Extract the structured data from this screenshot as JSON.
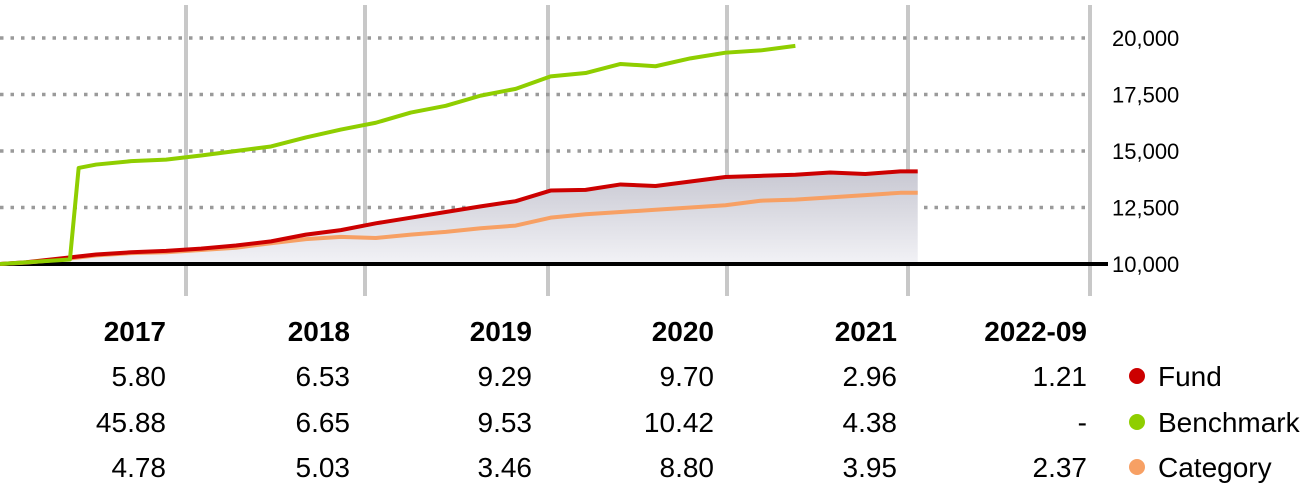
{
  "chart_data": {
    "type": "line",
    "title": "",
    "xlabel": "",
    "ylabel": "",
    "ylim": [
      10000,
      20500
    ],
    "y_ticks": [
      "10,000",
      "12,500",
      "15,000",
      "17,500",
      "20,000"
    ],
    "x_range": [
      2016.45,
      2022.8
    ],
    "grid": true,
    "legend_position": "bottom-right",
    "series": [
      {
        "name": "Fund",
        "color": "#cc0000",
        "x": [
          2016.45,
          2016.6,
          2016.8,
          2017.0,
          2017.2,
          2017.4,
          2017.6,
          2017.8,
          2018.0,
          2018.2,
          2018.4,
          2018.6,
          2018.8,
          2019.0,
          2019.2,
          2019.4,
          2019.6,
          2019.8,
          2020.0,
          2020.2,
          2020.4,
          2020.6,
          2020.8,
          2021.0,
          2021.2,
          2021.4,
          2021.6,
          2021.7
        ],
        "values": [
          10000,
          10080,
          10250,
          10420,
          10520,
          10580,
          10680,
          10820,
          11000,
          11300,
          11500,
          11800,
          12050,
          12300,
          12550,
          12780,
          13250,
          13280,
          13520,
          13450,
          13650,
          13850,
          13900,
          13950,
          14050,
          13980,
          14100,
          14100
        ]
      },
      {
        "name": "Benchmark",
        "color": "#8fce00",
        "x": [
          2016.45,
          2016.85,
          2016.9,
          2017.0,
          2017.2,
          2017.4,
          2017.6,
          2017.8,
          2018.0,
          2018.2,
          2018.4,
          2018.6,
          2018.8,
          2019.0,
          2019.2,
          2019.4,
          2019.6,
          2019.8,
          2020.0,
          2020.2,
          2020.4,
          2020.6,
          2020.8,
          2021.0
        ],
        "values": [
          10000,
          10200,
          14250,
          14400,
          14550,
          14620,
          14800,
          15000,
          15200,
          15600,
          15950,
          16250,
          16700,
          17000,
          17450,
          17750,
          18300,
          18450,
          18850,
          18750,
          19100,
          19350,
          19450,
          19650
        ]
      },
      {
        "name": "Category",
        "color": "#f7a064",
        "x": [
          2016.45,
          2016.6,
          2016.8,
          2017.0,
          2017.2,
          2017.4,
          2017.6,
          2017.8,
          2018.0,
          2018.2,
          2018.4,
          2018.6,
          2018.8,
          2019.0,
          2019.2,
          2019.4,
          2019.6,
          2019.8,
          2020.0,
          2020.2,
          2020.4,
          2020.6,
          2020.8,
          2021.0,
          2021.2,
          2021.4,
          2021.6,
          2021.7
        ],
        "values": [
          10000,
          10060,
          10200,
          10380,
          10480,
          10520,
          10620,
          10720,
          10920,
          11100,
          11200,
          11150,
          11300,
          11420,
          11580,
          11700,
          12050,
          12200,
          12300,
          12400,
          12500,
          12600,
          12800,
          12850,
          12950,
          13050,
          13150,
          13150
        ]
      }
    ],
    "columns": [
      "2017",
      "2018",
      "2019",
      "2020",
      "2021",
      "2022-09"
    ],
    "table": [
      {
        "name": "Fund",
        "color": "#cc0000",
        "values": [
          "5.80",
          "6.53",
          "9.29",
          "9.70",
          "2.96",
          "1.21"
        ]
      },
      {
        "name": "Benchmark",
        "color": "#8fce00",
        "values": [
          "45.88",
          "6.65",
          "9.53",
          "10.42",
          "4.38",
          "-"
        ]
      },
      {
        "name": "Category",
        "color": "#f7a064",
        "values": [
          "4.78",
          "5.03",
          "3.46",
          "8.80",
          "3.95",
          "2.37"
        ]
      }
    ]
  }
}
